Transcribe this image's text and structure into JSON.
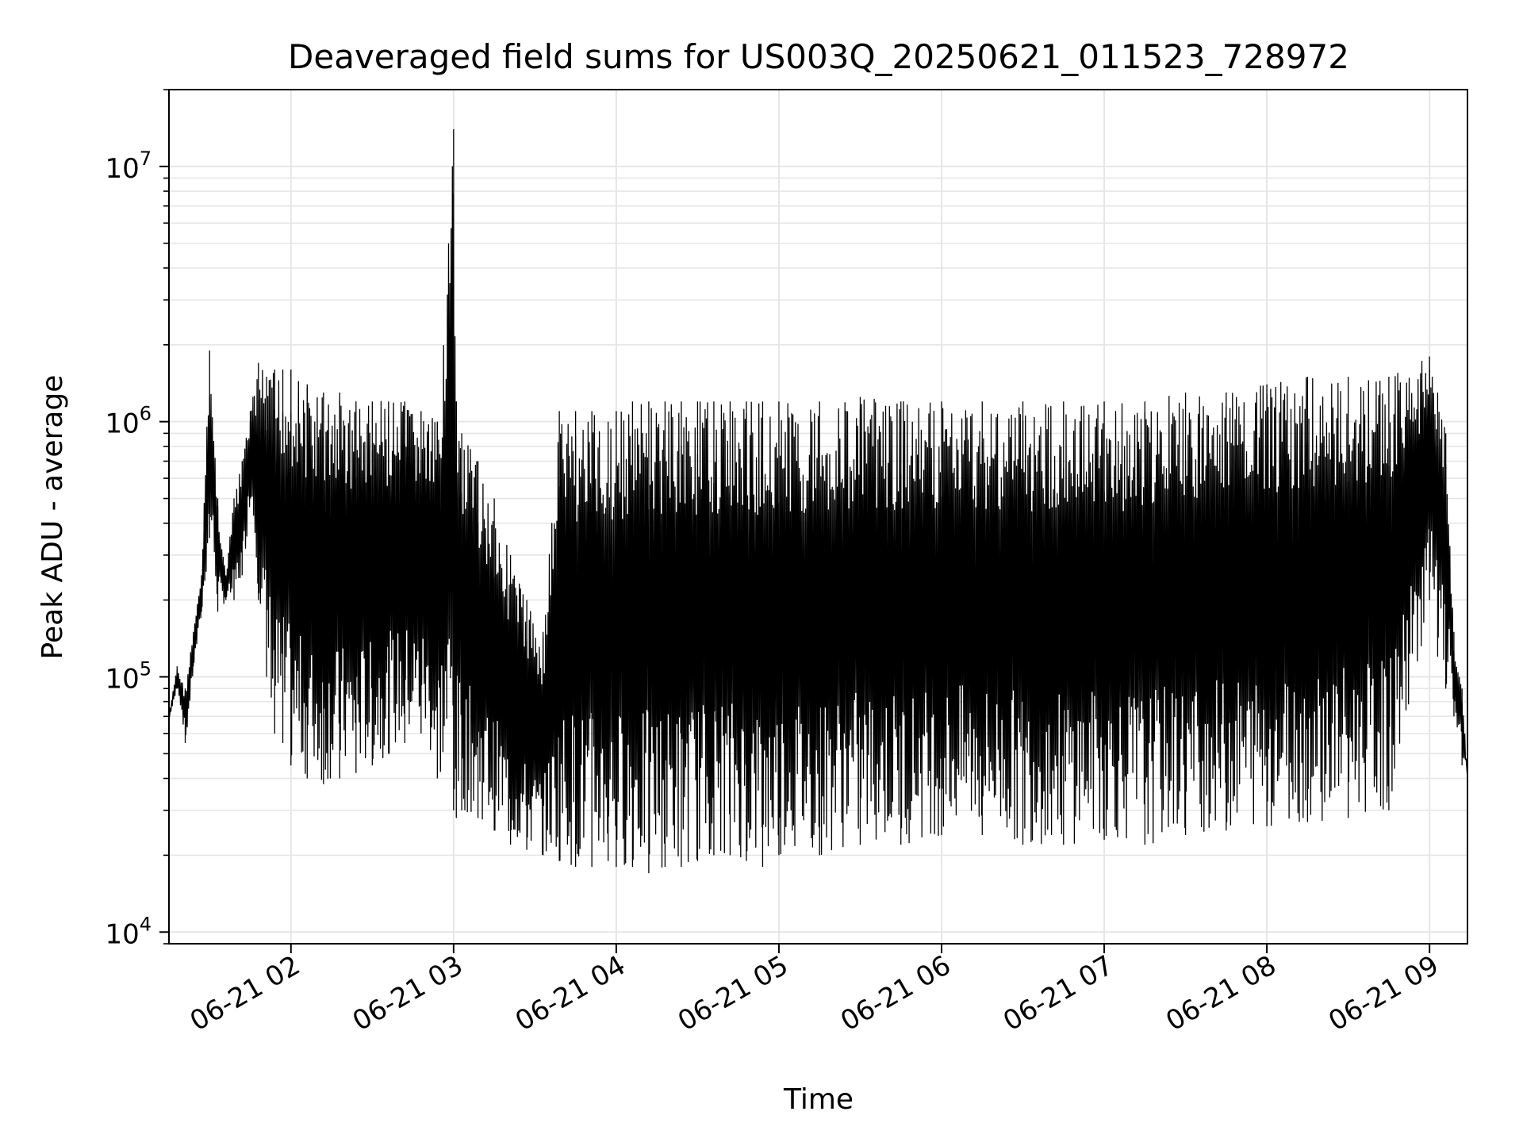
{
  "chart_data": {
    "type": "line",
    "title": "Deaveraged field sums for US003Q_20250621_011523_728972",
    "xlabel": "Time",
    "ylabel": "Peak ADU - average",
    "yscale": "log",
    "xlim": [
      "2025-06-21 01:15",
      "2025-06-21 09:14"
    ],
    "ylim": [
      9000,
      20000000
    ],
    "x_ticks": [
      {
        "value": "2025-06-21 02:00",
        "label": "06-21 02"
      },
      {
        "value": "2025-06-21 03:00",
        "label": "06-21 03"
      },
      {
        "value": "2025-06-21 04:00",
        "label": "06-21 04"
      },
      {
        "value": "2025-06-21 05:00",
        "label": "06-21 05"
      },
      {
        "value": "2025-06-21 06:00",
        "label": "06-21 06"
      },
      {
        "value": "2025-06-21 07:00",
        "label": "06-21 07"
      },
      {
        "value": "2025-06-21 08:00",
        "label": "06-21 08"
      },
      {
        "value": "2025-06-21 09:00",
        "label": "06-21 09"
      }
    ],
    "y_ticks": [
      {
        "value": 10000,
        "base": "10",
        "exp": "4"
      },
      {
        "value": 100000,
        "base": "10",
        "exp": "5"
      },
      {
        "value": 1000000,
        "base": "10",
        "exp": "6"
      },
      {
        "value": 10000000,
        "base": "10",
        "exp": "7"
      }
    ],
    "grid": true,
    "line_color": "#000000",
    "grid_color": "#e6e6e6",
    "series": [
      {
        "x": [
          "2025-06-21 01:15",
          "2025-06-21 01:18",
          "2025-06-21 01:21",
          "2025-06-21 01:24",
          "2025-06-21 01:27",
          "2025-06-21 01:30",
          "2025-06-21 01:33",
          "2025-06-21 01:36",
          "2025-06-21 01:39",
          "2025-06-21 01:42",
          "2025-06-21 01:45",
          "2025-06-21 01:48",
          "2025-06-21 01:51",
          "2025-06-21 01:54",
          "2025-06-21 01:57",
          "2025-06-21 02:00",
          "2025-06-21 02:06",
          "2025-06-21 02:12",
          "2025-06-21 02:18",
          "2025-06-21 02:24",
          "2025-06-21 02:30",
          "2025-06-21 02:36",
          "2025-06-21 02:42",
          "2025-06-21 02:48",
          "2025-06-21 02:54",
          "2025-06-21 03:00",
          "2025-06-21 03:01",
          "2025-06-21 03:03",
          "2025-06-21 03:09",
          "2025-06-21 03:15",
          "2025-06-21 03:21",
          "2025-06-21 03:27",
          "2025-06-21 03:33",
          "2025-06-21 03:39",
          "2025-06-21 03:45",
          "2025-06-21 03:51",
          "2025-06-21 03:57",
          "2025-06-21 04:00",
          "2025-06-21 04:06",
          "2025-06-21 04:12",
          "2025-06-21 04:18",
          "2025-06-21 04:24",
          "2025-06-21 04:30",
          "2025-06-21 04:36",
          "2025-06-21 04:42",
          "2025-06-21 04:48",
          "2025-06-21 04:54",
          "2025-06-21 05:00",
          "2025-06-21 05:15",
          "2025-06-21 05:30",
          "2025-06-21 05:45",
          "2025-06-21 06:00",
          "2025-06-21 06:15",
          "2025-06-21 06:30",
          "2025-06-21 06:45",
          "2025-06-21 07:00",
          "2025-06-21 07:15",
          "2025-06-21 07:30",
          "2025-06-21 07:45",
          "2025-06-21 08:00",
          "2025-06-21 08:15",
          "2025-06-21 08:30",
          "2025-06-21 08:45",
          "2025-06-21 09:00",
          "2025-06-21 09:03",
          "2025-06-21 09:06",
          "2025-06-21 09:09",
          "2025-06-21 09:12",
          "2025-06-21 09:14"
        ],
        "upper": [
          70000,
          110000,
          90000,
          150000,
          250000,
          1900000,
          500000,
          250000,
          500000,
          700000,
          1100000,
          1700000,
          1500000,
          1600000,
          1600000,
          1600000,
          1400000,
          1300000,
          1300000,
          1200000,
          1200000,
          1200000,
          1200000,
          1100000,
          1000000,
          14000000,
          1200000,
          900000,
          700000,
          500000,
          300000,
          200000,
          150000,
          1100000,
          1100000,
          1100000,
          1000000,
          1100000,
          1200000,
          1200000,
          1200000,
          1200000,
          1200000,
          1200000,
          1200000,
          1200000,
          1200000,
          1200000,
          1200000,
          1250000,
          1200000,
          1200000,
          1200000,
          1200000,
          1200000,
          1200000,
          1200000,
          1300000,
          1300000,
          1400000,
          1500000,
          1500000,
          1500000,
          1800000,
          1300000,
          900000,
          150000,
          90000,
          40000
        ],
        "lower": [
          70000,
          90000,
          55000,
          110000,
          180000,
          350000,
          180000,
          200000,
          200000,
          250000,
          500000,
          200000,
          100000,
          60000,
          55000,
          45000,
          40000,
          38000,
          40000,
          42000,
          45000,
          50000,
          55000,
          60000,
          40000,
          30000,
          28000,
          30000,
          28000,
          25000,
          22000,
          21000,
          20000,
          19000,
          18000,
          18000,
          19000,
          18000,
          18000,
          17000,
          18000,
          18000,
          19000,
          20000,
          20000,
          19000,
          18000,
          20000,
          20000,
          22000,
          22000,
          24000,
          24000,
          22000,
          22000,
          23000,
          22000,
          24000,
          25000,
          26000,
          27000,
          28000,
          30000,
          200000,
          120000,
          90000,
          70000,
          45000,
          40000
        ]
      }
    ]
  }
}
